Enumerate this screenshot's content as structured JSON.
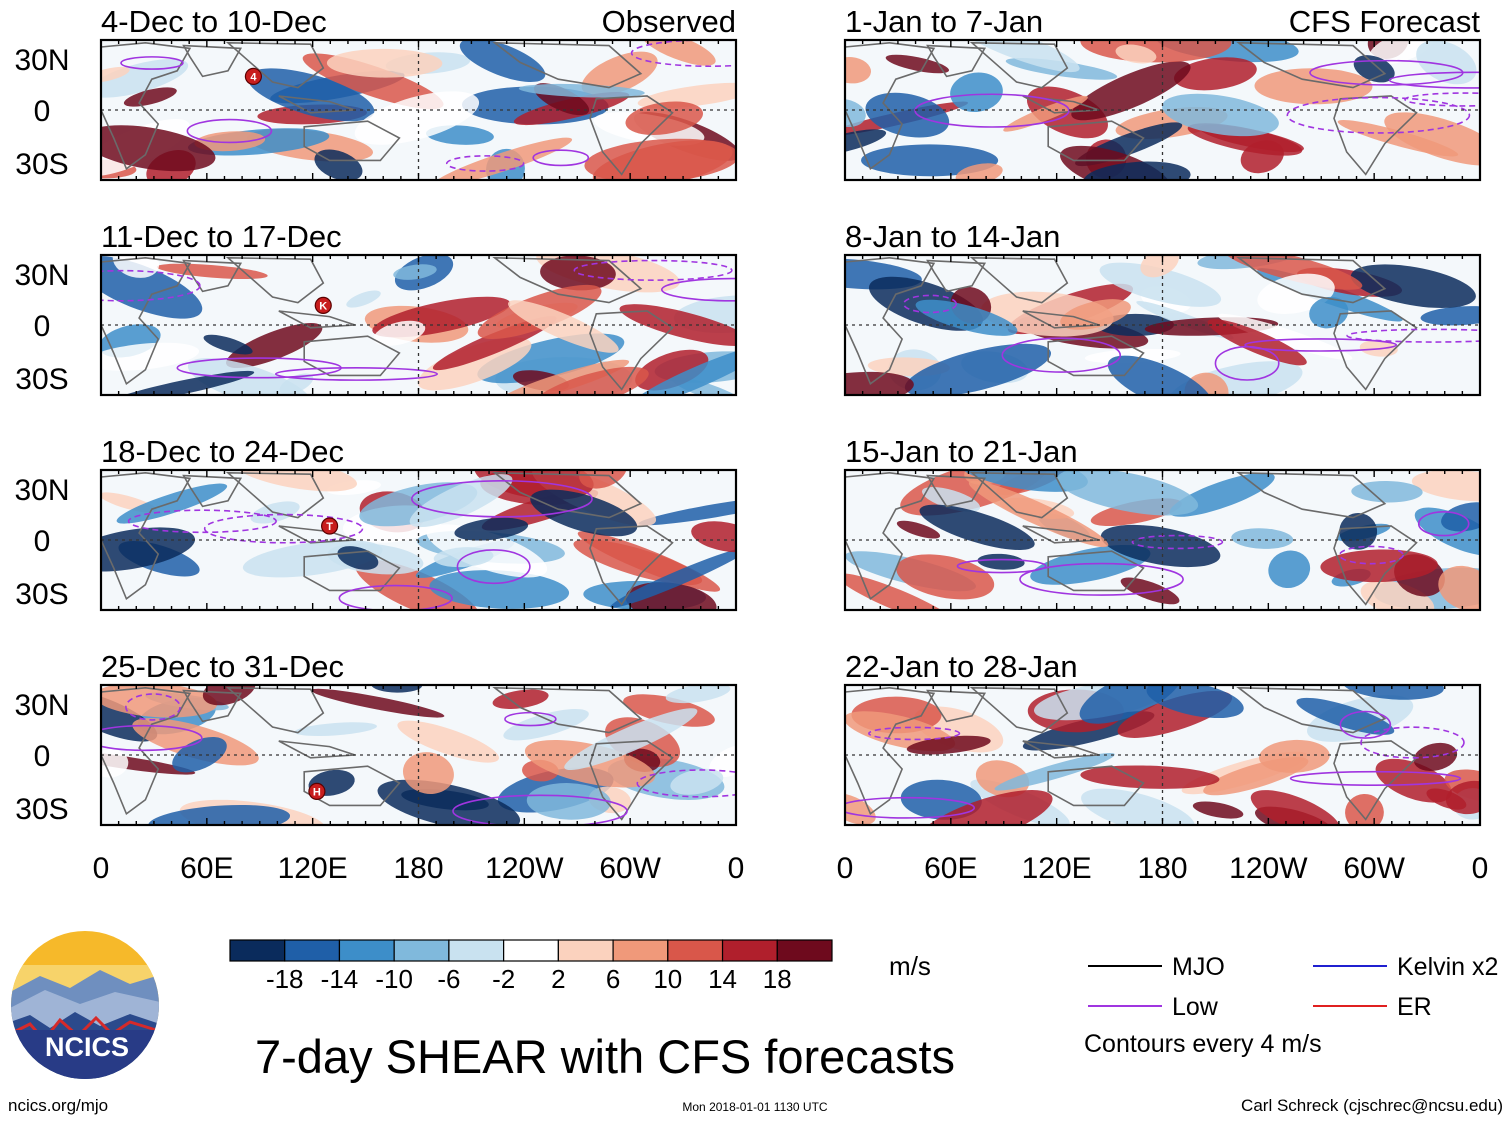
{
  "chart_data": {
    "type": "heatmap",
    "title": "7-day SHEAR with CFS forecasts",
    "units": "m/s",
    "x_tick_labels": [
      "0",
      "60E",
      "120E",
      "180",
      "120W",
      "60W",
      "0"
    ],
    "y_tick_labels": [
      "30N",
      "0",
      "30S"
    ],
    "x_range_deg_east": [
      0,
      360
    ],
    "y_range_deg_lat": [
      -40,
      40
    ],
    "columns": [
      {
        "label": "Observed"
      },
      {
        "label": "CFS Forecast"
      }
    ],
    "panels": [
      {
        "period": "4-Dec to 10-Dec",
        "source": "Observed",
        "storms": [
          "4"
        ]
      },
      {
        "period": "11-Dec to 17-Dec",
        "source": "Observed",
        "storms": [
          "K"
        ]
      },
      {
        "period": "18-Dec to 24-Dec",
        "source": "Observed",
        "storms": [
          "T"
        ]
      },
      {
        "period": "25-Dec to 31-Dec",
        "source": "Observed",
        "storms": [
          "H"
        ]
      },
      {
        "period": "1-Jan to 7-Jan",
        "source": "CFS Forecast",
        "storms": []
      },
      {
        "period": "8-Jan to 14-Jan",
        "source": "CFS Forecast",
        "storms": []
      },
      {
        "period": "15-Jan to 21-Jan",
        "source": "CFS Forecast",
        "storms": []
      },
      {
        "period": "22-Jan to 28-Jan",
        "source": "CFS Forecast",
        "storms": []
      }
    ],
    "colorbar": {
      "levels": [
        "-18",
        "-14",
        "-10",
        "-6",
        "-2",
        "2",
        "6",
        "10",
        "14",
        "18"
      ],
      "colors": [
        "#0a2b5c",
        "#1f5fa8",
        "#3d8ec9",
        "#80b9dc",
        "#c9e2f0",
        "#ffffff",
        "#fbd2be",
        "#f0997a",
        "#d9574a",
        "#b01f2c",
        "#6e0a1d"
      ]
    },
    "legend": {
      "items": [
        {
          "label": "MJO",
          "color": "#000000"
        },
        {
          "label": "Kelvin x2",
          "color": "#2020d0"
        },
        {
          "label": "Low",
          "color": "#a035e0"
        },
        {
          "label": "ER",
          "color": "#e02020"
        }
      ],
      "note": "Contours every 4 m/s"
    }
  },
  "logo": {
    "text": "NCICS"
  },
  "footer": {
    "url": "ncics.org/mjo",
    "timestamp": "Mon 2018-01-01 1130 UTC",
    "credit": "Carl Schreck (cjschrec@ncsu.edu)"
  },
  "colors": {
    "contour": "#a035e0",
    "coast": "#6a6a6a",
    "frame": "#000000"
  }
}
